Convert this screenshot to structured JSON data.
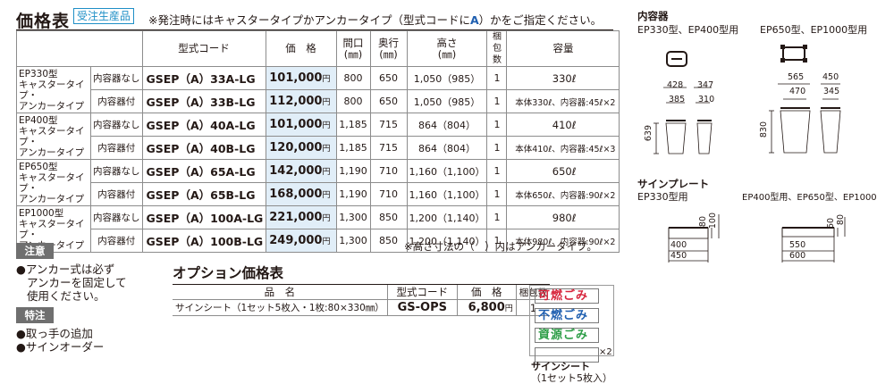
{
  "header": {
    "title": "価格表",
    "badge": "受注生産品",
    "note_pre": "※発注時にはキャスタータイプかアンカータイプ（型式コードに",
    "note_accent": "A",
    "note_post": "）かをご指定ください。"
  },
  "table": {
    "columns": [
      "型式コード",
      "価　格",
      "間口\n(㎜)",
      "奥行\n(㎜)",
      "高さ\n(㎜)",
      "梱包\n数",
      "容量"
    ],
    "series": [
      {
        "name": "EP330型\nキャスタータイプ・\nアンカータイプ"
      },
      {
        "name": "EP400型\nキャスタータイプ・\nアンカータイプ"
      },
      {
        "name": "EP650型\nキャスタータイプ・\nアンカータイプ"
      },
      {
        "name": "EP1000型\nキャスタータイプ・\nアンカータイプ"
      }
    ],
    "rows": [
      {
        "variant": "内容器なし",
        "code": "GSEP（A）33A-LG",
        "price": "101,000",
        "yen": "円",
        "width": "800",
        "depth": "650",
        "height": "1,050（985）",
        "pack": "1",
        "capacity": "330ℓ"
      },
      {
        "variant": "内容器付",
        "code": "GSEP（A）33B-LG",
        "price": "112,000",
        "yen": "円",
        "width": "800",
        "depth": "650",
        "height": "1,050（985）",
        "pack": "1",
        "capacity": "本体330ℓ、内容器:45ℓ×2"
      },
      {
        "variant": "内容器なし",
        "code": "GSEP（A）40A-LG",
        "price": "101,000",
        "yen": "円",
        "width": "1,185",
        "depth": "715",
        "height": "864（804）",
        "pack": "1",
        "capacity": "410ℓ"
      },
      {
        "variant": "内容器付",
        "code": "GSEP（A）40B-LG",
        "price": "120,000",
        "yen": "円",
        "width": "1,185",
        "depth": "715",
        "height": "864（804）",
        "pack": "1",
        "capacity": "本体410ℓ、内容器:45ℓ×3"
      },
      {
        "variant": "内容器なし",
        "code": "GSEP（A）65A-LG",
        "price": "142,000",
        "yen": "円",
        "width": "1,190",
        "depth": "710",
        "height": "1,160（1,100）",
        "pack": "1",
        "capacity": "650ℓ"
      },
      {
        "variant": "内容器付",
        "code": "GSEP（A）65B-LG",
        "price": "168,000",
        "yen": "円",
        "width": "1,190",
        "depth": "710",
        "height": "1,160（1,100）",
        "pack": "1",
        "capacity": "本体650ℓ、内容器:90ℓ×2"
      },
      {
        "variant": "内容器なし",
        "code": "GSEP（A）100A-LG",
        "price": "221,000",
        "yen": "円",
        "width": "1,300",
        "depth": "850",
        "height": "1,200（1,140）",
        "pack": "1",
        "capacity": "980ℓ"
      },
      {
        "variant": "内容器付",
        "code": "GSEP（A）100B-LG",
        "price": "249,000",
        "yen": "円",
        "width": "1,300",
        "depth": "850",
        "height": "1,200（1,140）",
        "pack": "1",
        "capacity": "本体980ℓ、内容器:90ℓ×2"
      }
    ],
    "footnote": "※高さ寸法の（　）内はアンカータイプ。"
  },
  "caution": {
    "label": "注意",
    "lines": [
      "●アンカー式は必ず",
      "アンカーを固定して",
      "使用ください。"
    ]
  },
  "special": {
    "label": "特注",
    "lines": [
      "●取っ手の追加",
      "●サインオーダー"
    ]
  },
  "options": {
    "title": "オプション価格表",
    "columns": [
      "品　名",
      "型式コード",
      "価　格",
      "梱包数"
    ],
    "row": {
      "name": "サインシート（1セット5枚入・1枚:80×330㎜）",
      "code": "GS-OPS",
      "price": "6,800",
      "yen": "円",
      "pack": "1"
    }
  },
  "sign_sheet": {
    "labels": [
      "可燃ごみ",
      "不燃ごみ",
      "資源ごみ"
    ],
    "label_colors": [
      "#d7263d",
      "#1f5fb0",
      "#2e9e48"
    ],
    "multiplier": "×2",
    "caption": "サインシート",
    "caption_sub": "（1セット5枚入）"
  },
  "inner_container": {
    "title": "内容器",
    "left_label": "EP330型、EP400型用",
    "right_label": "EP650型、EP1000型用",
    "left_dims": [
      "428",
      "385",
      "347",
      "310",
      "639"
    ],
    "right_dims": [
      "565",
      "470",
      "450",
      "345",
      "830"
    ]
  },
  "sign_plate": {
    "title": "サインプレート",
    "left_label": "EP330型用",
    "right_label": "EP400型用、EP650型、EP1000型用",
    "left_dims": [
      "80",
      "100",
      "400",
      "450"
    ],
    "right_dims": [
      "60",
      "80",
      "550",
      "600"
    ]
  }
}
